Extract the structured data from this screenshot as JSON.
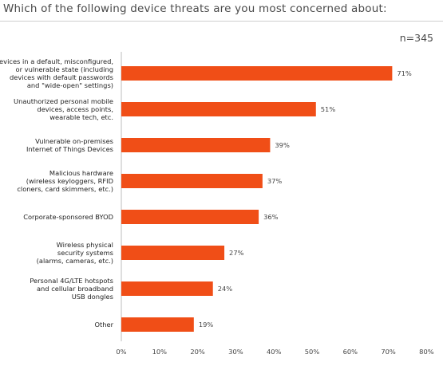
{
  "title": "Which of the following device threats are you most concerned about:",
  "sample_size": "n=345",
  "colors": {
    "bar": "#f04e17",
    "axis": "#bdbdbd",
    "grid": "#e6e6e6"
  },
  "chart_data": {
    "type": "bar",
    "orientation": "horizontal",
    "title": "Which of the following device threats are you most concerned about:",
    "categories": [
      [
        "Devices in a default, misconfigured,",
        "or vulnerable state (including",
        "devices with default passwords",
        "and \"wide-open\" settings)"
      ],
      [
        "Unauthorized personal mobile",
        "devices, access points,",
        "wearable tech, etc."
      ],
      [
        "Vulnerable on-premises",
        "Internet of Things Devices"
      ],
      [
        "Malicious hardware",
        "(wireless keyloggers, RFID",
        "cloners, card skimmers, etc.)"
      ],
      [
        "Corporate-sponsored BYOD"
      ],
      [
        "Wireless physical",
        "security systems",
        "(alarms, cameras, etc.)"
      ],
      [
        "Personal 4G/LTE hotspots",
        "and cellular broadband",
        "USB dongles"
      ],
      [
        "Other"
      ]
    ],
    "values": [
      71,
      51,
      39,
      37,
      36,
      27,
      24,
      19
    ],
    "value_labels": [
      "71%",
      "51%",
      "39%",
      "37%",
      "36%",
      "27%",
      "24%",
      "19%"
    ],
    "x_ticks": [
      "0%",
      "10%",
      "20%",
      "30%",
      "40%",
      "50%",
      "60%",
      "70%",
      "80%"
    ],
    "xlim": [
      0,
      80
    ],
    "grid": false,
    "legend": "none"
  }
}
